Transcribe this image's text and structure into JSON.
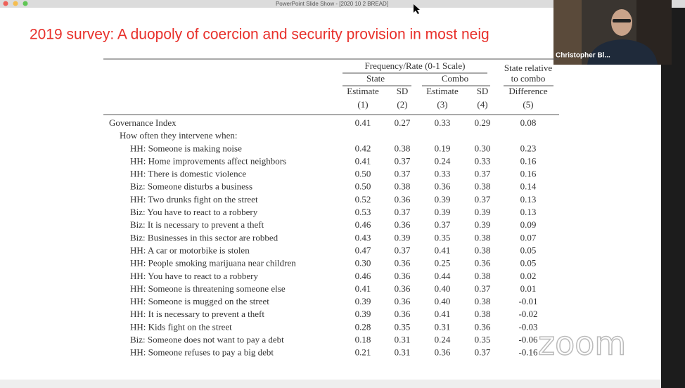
{
  "window": {
    "title": "PowerPoint Slide Show - [2020 10 2 BREAD]"
  },
  "slide": {
    "title": "2019 survey: A duopoly of coercion and security provision in most neig"
  },
  "video": {
    "name": "Christopher Bl..."
  },
  "watermark": "zoom",
  "table": {
    "group_header": "Frequency/Rate (0-1 Scale)",
    "state_header": "State",
    "combo_header": "Combo",
    "relative_header": [
      "State relative",
      "to combo"
    ],
    "columns": [
      "Estimate",
      "SD",
      "Estimate",
      "SD",
      "Difference"
    ],
    "column_numbers": [
      "(1)",
      "(2)",
      "(3)",
      "(4)",
      "(5)"
    ],
    "rows": [
      {
        "label": "Governance Index",
        "values": [
          "0.41",
          "0.27",
          "0.33",
          "0.29",
          "0.08"
        ]
      },
      {
        "label": "How often they intervene when:"
      },
      {
        "label": "HH: Someone is making noise",
        "values": [
          "0.42",
          "0.38",
          "0.19",
          "0.30",
          "0.23"
        ]
      },
      {
        "label": "HH: Home improvements affect neighbors",
        "values": [
          "0.41",
          "0.37",
          "0.24",
          "0.33",
          "0.16"
        ]
      },
      {
        "label": "HH: There is domestic violence",
        "values": [
          "0.50",
          "0.37",
          "0.33",
          "0.37",
          "0.16"
        ]
      },
      {
        "label": "Biz: Someone disturbs a business",
        "values": [
          "0.50",
          "0.38",
          "0.36",
          "0.38",
          "0.14"
        ]
      },
      {
        "label": "HH: Two drunks fight on the street",
        "values": [
          "0.52",
          "0.36",
          "0.39",
          "0.37",
          "0.13"
        ]
      },
      {
        "label": "Biz: You have to react to a robbery",
        "values": [
          "0.53",
          "0.37",
          "0.39",
          "0.39",
          "0.13"
        ]
      },
      {
        "label": "Biz: It is necessary to prevent a theft",
        "values": [
          "0.46",
          "0.36",
          "0.37",
          "0.39",
          "0.09"
        ]
      },
      {
        "label": "Biz: Businesses in this sector are robbed",
        "values": [
          "0.43",
          "0.39",
          "0.35",
          "0.38",
          "0.07"
        ]
      },
      {
        "label": "HH: A car or motorbike is stolen",
        "values": [
          "0.47",
          "0.37",
          "0.41",
          "0.38",
          "0.05"
        ]
      },
      {
        "label": "HH: People smoking marijuana near children",
        "values": [
          "0.30",
          "0.36",
          "0.25",
          "0.36",
          "0.05"
        ]
      },
      {
        "label": "HH: You have to react to a robbery",
        "values": [
          "0.46",
          "0.36",
          "0.44",
          "0.38",
          "0.02"
        ]
      },
      {
        "label": "HH: Someone is threatening someone else",
        "values": [
          "0.41",
          "0.36",
          "0.40",
          "0.37",
          "0.01"
        ]
      },
      {
        "label": "HH: Someone is mugged on the street",
        "values": [
          "0.39",
          "0.36",
          "0.40",
          "0.38",
          "-0.01"
        ]
      },
      {
        "label": "HH: It is necessary to prevent a theft",
        "values": [
          "0.39",
          "0.36",
          "0.41",
          "0.38",
          "-0.02"
        ]
      },
      {
        "label": "HH: Kids fight on the street",
        "values": [
          "0.28",
          "0.35",
          "0.31",
          "0.36",
          "-0.03"
        ]
      },
      {
        "label": "Biz: Someone does not want to pay a debt",
        "values": [
          "0.18",
          "0.31",
          "0.24",
          "0.35",
          "-0.06"
        ]
      },
      {
        "label": "HH: Someone refuses to pay a big debt",
        "values": [
          "0.21",
          "0.31",
          "0.36",
          "0.37",
          "-0.16"
        ]
      }
    ]
  }
}
